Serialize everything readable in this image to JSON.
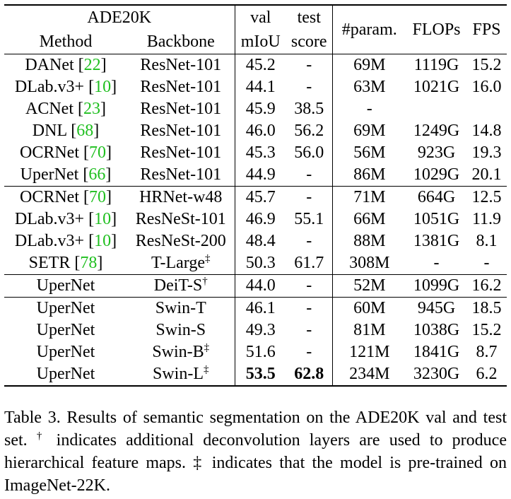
{
  "header": {
    "dataset": "ADE20K",
    "method": "Method",
    "backbone": "Backbone",
    "val_top": "val",
    "val_bottom": "mIoU",
    "test_top": "test",
    "test_bottom": "score",
    "params": "#param.",
    "flops": "FLOPs",
    "fps": "FPS"
  },
  "groups": [
    [
      {
        "method": "DANet",
        "cite": "22",
        "backbone": "ResNet-101",
        "mark": "",
        "val": "45.2",
        "test": "-",
        "params": "69M",
        "flops": "1119G",
        "fps": "15.2"
      },
      {
        "method": "DLab.v3+",
        "cite": "10",
        "backbone": "ResNet-101",
        "mark": "",
        "val": "44.1",
        "test": "-",
        "params": "63M",
        "flops": "1021G",
        "fps": "16.0"
      },
      {
        "method": "ACNet",
        "cite": "23",
        "backbone": "ResNet-101",
        "mark": "",
        "val": "45.9",
        "test": "38.5",
        "params": "-",
        "flops": "",
        "fps": ""
      },
      {
        "method": "DNL",
        "cite": "68",
        "backbone": "ResNet-101",
        "mark": "",
        "val": "46.0",
        "test": "56.2",
        "params": "69M",
        "flops": "1249G",
        "fps": "14.8"
      },
      {
        "method": "OCRNet",
        "cite": "70",
        "backbone": "ResNet-101",
        "mark": "",
        "val": "45.3",
        "test": "56.0",
        "params": "56M",
        "flops": "923G",
        "fps": "19.3"
      },
      {
        "method": "UperNet",
        "cite": "66",
        "backbone": "ResNet-101",
        "mark": "",
        "val": "44.9",
        "test": "-",
        "params": "86M",
        "flops": "1029G",
        "fps": "20.1"
      }
    ],
    [
      {
        "method": "OCRNet",
        "cite": "70",
        "backbone": "HRNet-w48",
        "mark": "",
        "val": "45.7",
        "test": "-",
        "params": "71M",
        "flops": "664G",
        "fps": "12.5"
      },
      {
        "method": "DLab.v3+",
        "cite": "10",
        "backbone": "ResNeSt-101",
        "mark": "",
        "val": "46.9",
        "test": "55.1",
        "params": "66M",
        "flops": "1051G",
        "fps": "11.9"
      },
      {
        "method": "DLab.v3+",
        "cite": "10",
        "backbone": "ResNeSt-200",
        "mark": "",
        "val": "48.4",
        "test": "-",
        "params": "88M",
        "flops": "1381G",
        "fps": "8.1"
      },
      {
        "method": "SETR",
        "cite": "78",
        "backbone": "T-Large",
        "mark": "‡",
        "val": "50.3",
        "test": "61.7",
        "params": "308M",
        "flops": "-",
        "fps": "-"
      }
    ],
    [
      {
        "method": "UperNet",
        "cite": "",
        "backbone": "DeiT-S",
        "mark": "†",
        "val": "44.0",
        "test": "-",
        "params": "52M",
        "flops": "1099G",
        "fps": "16.2"
      }
    ],
    [
      {
        "method": "UperNet",
        "cite": "",
        "backbone": "Swin-T",
        "mark": "",
        "val": "46.1",
        "test": "-",
        "params": "60M",
        "flops": "945G",
        "fps": "18.5"
      },
      {
        "method": "UperNet",
        "cite": "",
        "backbone": "Swin-S",
        "mark": "",
        "val": "49.3",
        "test": "-",
        "params": "81M",
        "flops": "1038G",
        "fps": "15.2"
      },
      {
        "method": "UperNet",
        "cite": "",
        "backbone": "Swin-B",
        "mark": "‡",
        "val": "51.6",
        "test": "-",
        "params": "121M",
        "flops": "1841G",
        "fps": "8.7"
      },
      {
        "method": "UperNet",
        "cite": "",
        "backbone": "Swin-L",
        "mark": "‡",
        "val": "53.5",
        "test": "62.8",
        "params": "234M",
        "flops": "3230G",
        "fps": "6.2",
        "bold": [
          "val",
          "test"
        ]
      }
    ]
  ],
  "caption": {
    "part1": "Table 3. Results of semantic segmentation on the ADE20K val and test set. ",
    "dagger": "†",
    "part2": " indicates additional deconvolution layers are used to produce hierarchical feature maps. ",
    "ddagger": "‡",
    "part3": " indicates that the model is pre-trained on ImageNet-22K."
  },
  "colors": {
    "citation": "#1fbf1f",
    "text": "#000000"
  }
}
